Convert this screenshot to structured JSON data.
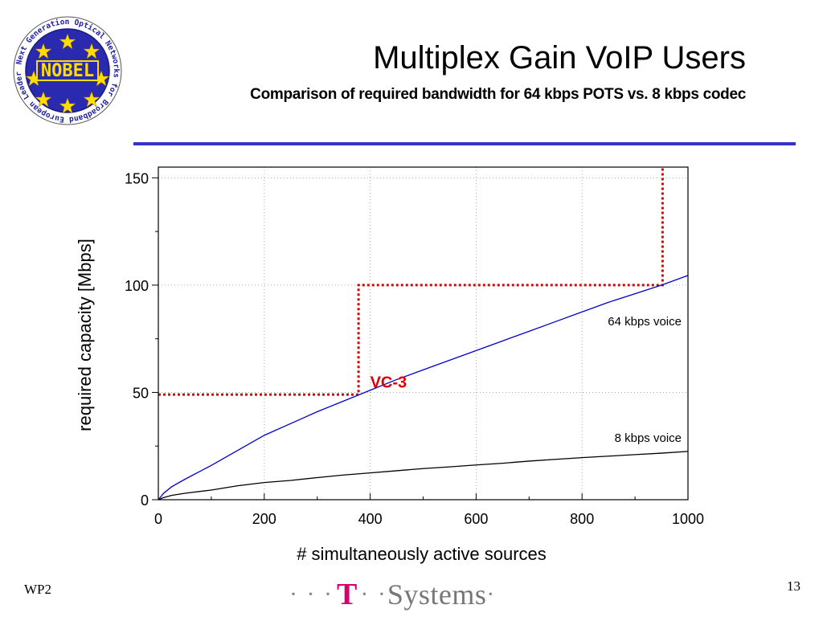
{
  "header": {
    "title": "Multiplex Gain VoIP Users",
    "subtitle": "Comparison of required bandwidth for 64 kbps POTS vs. 8 kbps codec"
  },
  "logo": {
    "ring_text": "Next Generation Optical Networks for Broadband European Leadership",
    "name": "NOBEL"
  },
  "footer": {
    "left": "WP2",
    "page_number": "13",
    "brand": {
      "prefix_dots": "· · ·",
      "t": "T",
      "mid_dots": "· ·",
      "name": "Systems",
      "suffix_dot": "·"
    }
  },
  "colors": {
    "rule": "#3333cc",
    "series_64": "#0000cc",
    "series_8": "#000000",
    "vc3": "#e00000",
    "brand_t": "#d6006f"
  },
  "chart_data": {
    "type": "line",
    "xlabel": "# simultaneously active sources",
    "ylabel": "required capacity [Mbps]",
    "xlim": [
      0,
      1000
    ],
    "ylim": [
      0,
      155
    ],
    "xticks": [
      0,
      200,
      400,
      600,
      800,
      1000
    ],
    "yticks": [
      0,
      50,
      100,
      150
    ],
    "grid": true,
    "series": [
      {
        "name": "64 kbps voice",
        "color": "#0000cc",
        "x": [
          0,
          10,
          25,
          50,
          100,
          150,
          200,
          250,
          300,
          350,
          400,
          450,
          500,
          550,
          600,
          650,
          700,
          750,
          800,
          850,
          900,
          950,
          1000
        ],
        "y": [
          0,
          3,
          6,
          9.5,
          16,
          23,
          30,
          35.5,
          41,
          46,
          51,
          56,
          60.5,
          65,
          69.5,
          74,
          78.5,
          83,
          87.5,
          92,
          96,
          100,
          104.5
        ]
      },
      {
        "name": "8 kbps voice",
        "color": "#000000",
        "x": [
          0,
          10,
          25,
          50,
          100,
          150,
          200,
          250,
          300,
          350,
          400,
          450,
          500,
          550,
          600,
          650,
          700,
          750,
          800,
          850,
          900,
          950,
          1000
        ],
        "y": [
          0,
          1,
          2,
          3,
          4.5,
          6.5,
          8,
          9,
          10.3,
          11.5,
          12.5,
          13.5,
          14.5,
          15.3,
          16.2,
          17,
          18,
          18.8,
          19.6,
          20.3,
          21,
          21.7,
          22.5
        ]
      }
    ],
    "annotations": [
      {
        "text": "VC-3",
        "color": "#e00000",
        "x": 230,
        "y": 56
      }
    ],
    "vc_lines": [
      {
        "points": [
          [
            0,
            49
          ],
          [
            378,
            49
          ],
          [
            378,
            100
          ],
          [
            952,
            100
          ],
          [
            952,
            155
          ]
        ],
        "color": "#e00000"
      }
    ]
  }
}
